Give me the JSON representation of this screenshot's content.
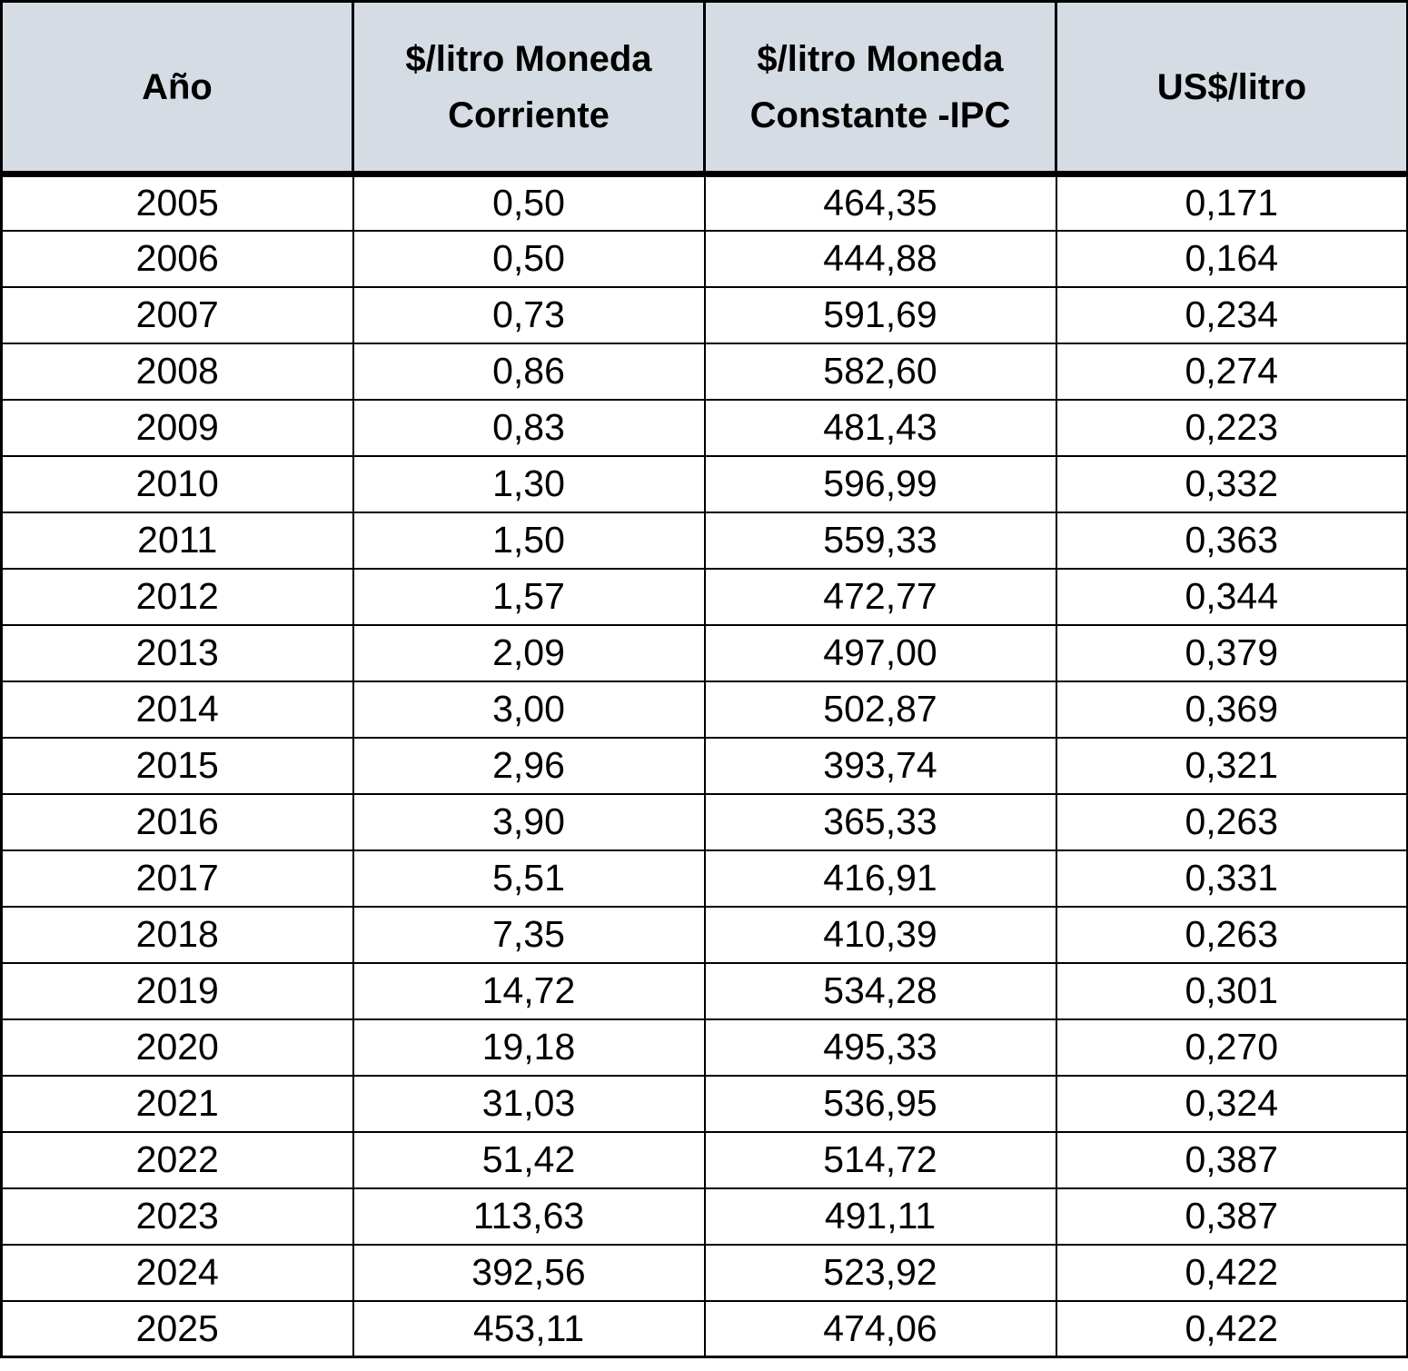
{
  "table": {
    "headers": [
      "Año",
      "$/litro Moneda\nCorriente",
      "$/litro Moneda\nConstante -IPC",
      "US$/litro"
    ],
    "rows": [
      [
        "2005",
        "0,50",
        "464,35",
        "0,171"
      ],
      [
        "2006",
        "0,50",
        "444,88",
        "0,164"
      ],
      [
        "2007",
        "0,73",
        "591,69",
        "0,234"
      ],
      [
        "2008",
        "0,86",
        "582,60",
        "0,274"
      ],
      [
        "2009",
        "0,83",
        "481,43",
        "0,223"
      ],
      [
        "2010",
        "1,30",
        "596,99",
        "0,332"
      ],
      [
        "2011",
        "1,50",
        "559,33",
        "0,363"
      ],
      [
        "2012",
        "1,57",
        "472,77",
        "0,344"
      ],
      [
        "2013",
        "2,09",
        "497,00",
        "0,379"
      ],
      [
        "2014",
        "3,00",
        "502,87",
        "0,369"
      ],
      [
        "2015",
        "2,96",
        "393,74",
        "0,321"
      ],
      [
        "2016",
        "3,90",
        "365,33",
        "0,263"
      ],
      [
        "2017",
        "5,51",
        "416,91",
        "0,331"
      ],
      [
        "2018",
        "7,35",
        "410,39",
        "0,263"
      ],
      [
        "2019",
        "14,72",
        "534,28",
        "0,301"
      ],
      [
        "2020",
        "19,18",
        "495,33",
        "0,270"
      ],
      [
        "2021",
        "31,03",
        "536,95",
        "0,324"
      ],
      [
        "2022",
        "51,42",
        "514,72",
        "0,387"
      ],
      [
        "2023",
        "113,63",
        "491,11",
        "0,387"
      ],
      [
        "2024",
        "392,56",
        "523,92",
        "0,422"
      ],
      [
        "2025",
        "453,11",
        "474,06",
        "0,422"
      ]
    ]
  },
  "colors": {
    "header_background": "#d6dce4",
    "border": "#000000",
    "text": "#000000"
  }
}
